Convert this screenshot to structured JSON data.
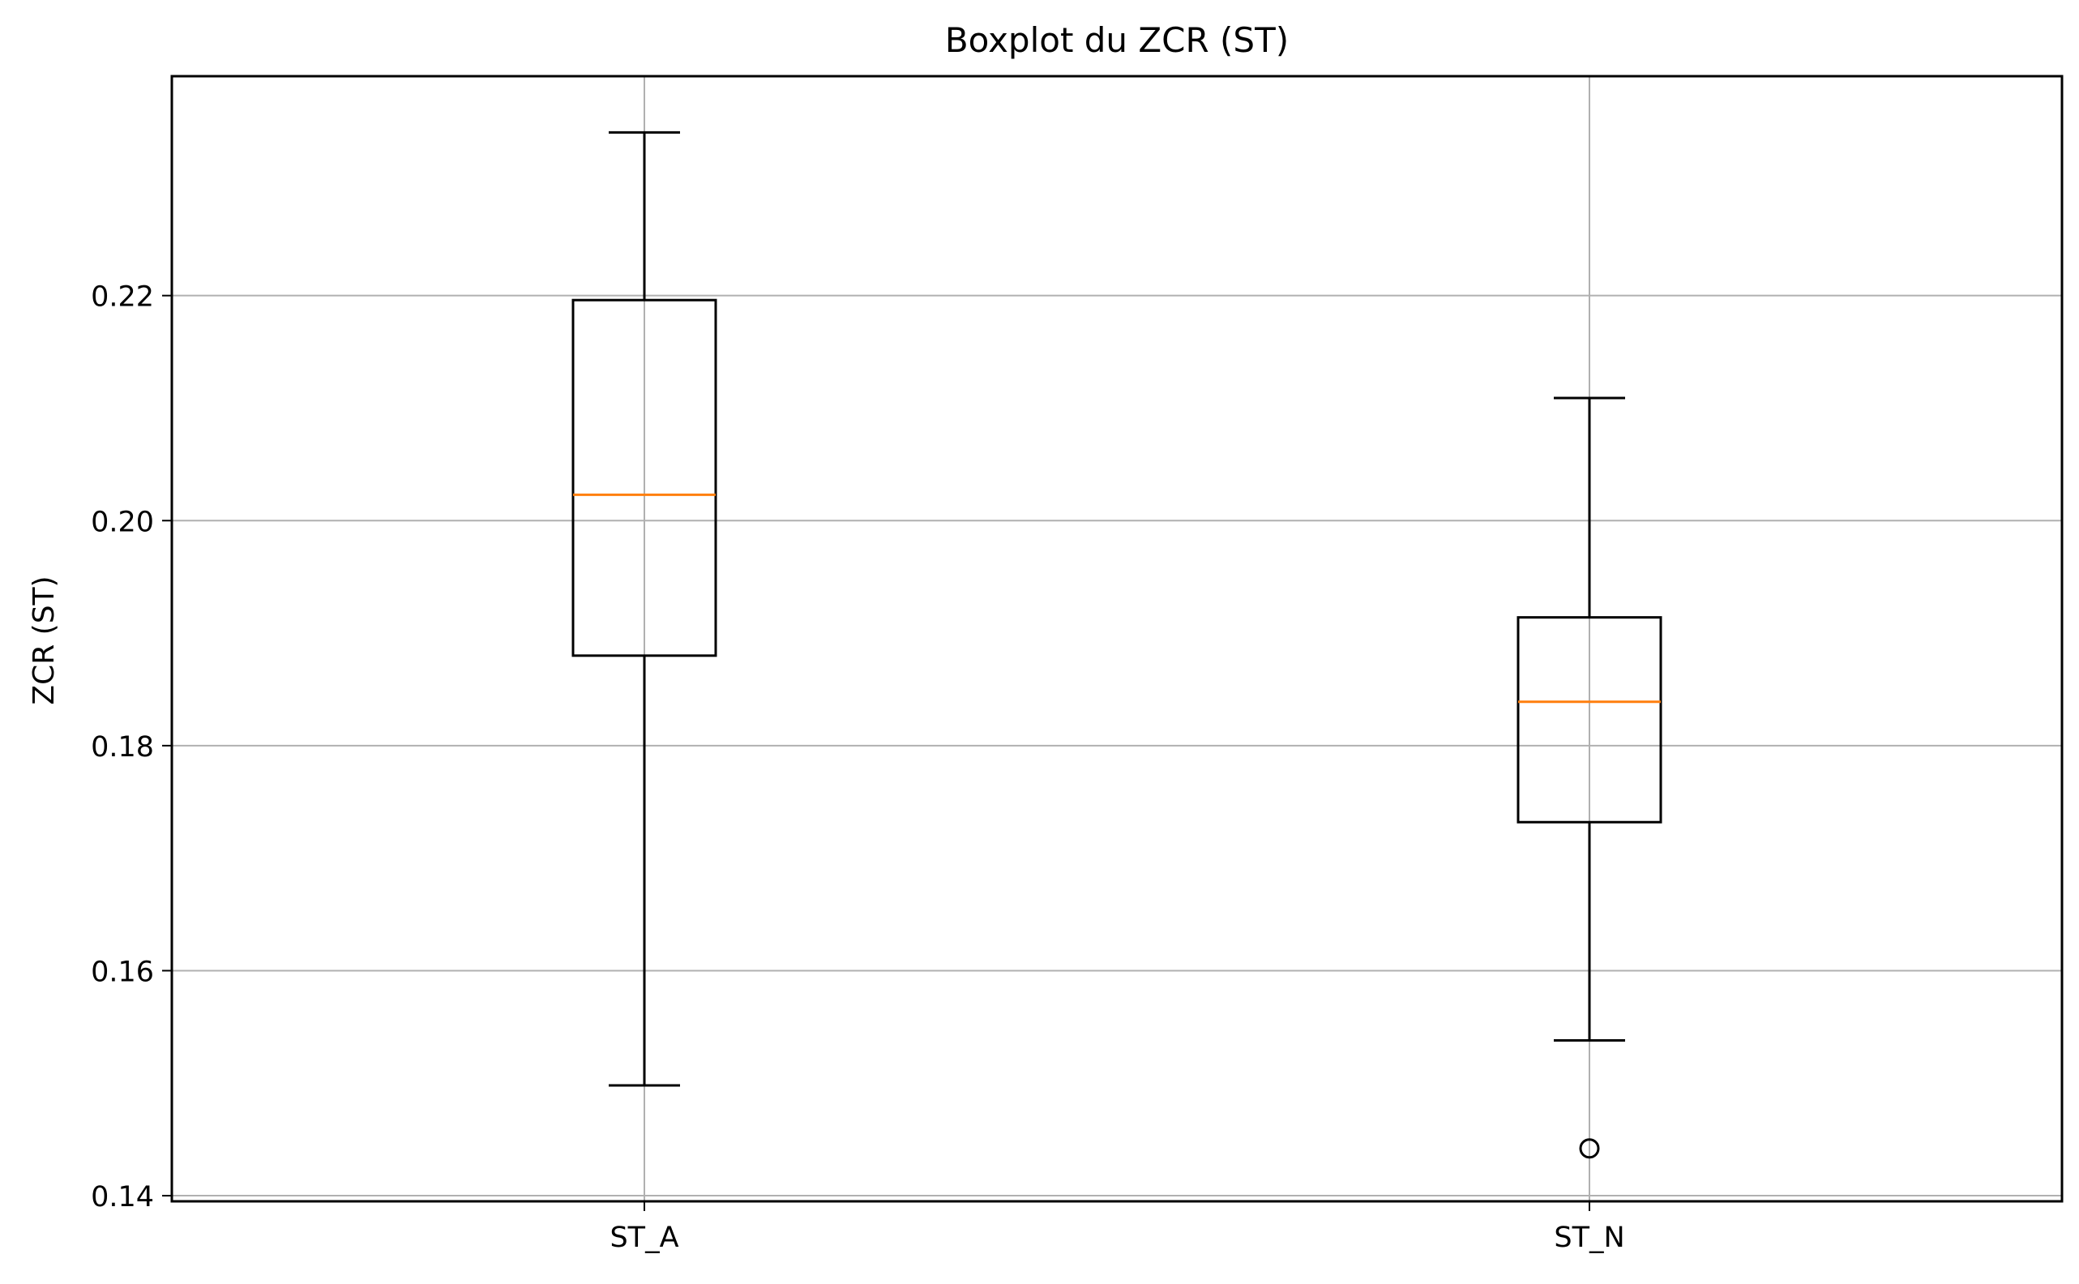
{
  "chart_data": {
    "type": "boxplot",
    "title": "Boxplot du ZCR (ST)",
    "xlabel": "",
    "ylabel": "ZCR (ST)",
    "categories": [
      "ST_A",
      "ST_N"
    ],
    "ylim": [
      0.1395,
      0.2395
    ],
    "yticks": [
      0.14,
      0.16,
      0.18,
      0.2,
      0.22
    ],
    "ytick_labels": [
      "0.14",
      "0.16",
      "0.18",
      "0.20",
      "0.22"
    ],
    "grid": true,
    "boxes": [
      {
        "label": "ST_A",
        "whisker_low": 0.1498,
        "q1": 0.188,
        "median": 0.2023,
        "q3": 0.2196,
        "whisker_high": 0.2345,
        "outliers": []
      },
      {
        "label": "ST_N",
        "whisker_low": 0.1538,
        "q1": 0.1732,
        "median": 0.1839,
        "q3": 0.1914,
        "whisker_high": 0.2109,
        "outliers": [
          0.1442
        ]
      }
    ],
    "colors": {
      "box": "#000000",
      "median": "#ff7f0e",
      "grid": "#b0b0b0",
      "axes": "#000000"
    }
  }
}
